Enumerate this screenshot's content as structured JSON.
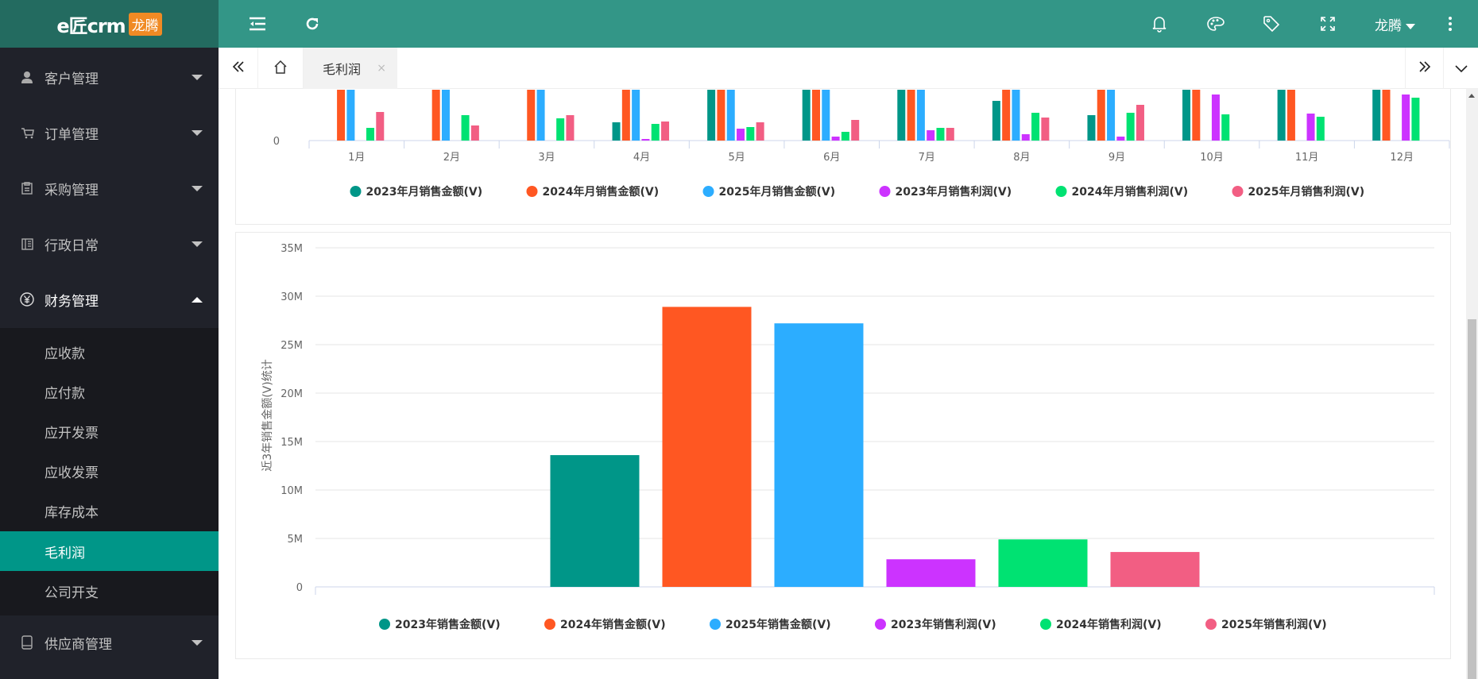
{
  "app": {
    "logo_text": "e匠crm",
    "logo_badge": "龙腾"
  },
  "header": {
    "user": "龙腾",
    "icons": [
      "menu-fold-icon",
      "refresh-icon",
      "bell-icon",
      "palette-icon",
      "tag-icon",
      "fullscreen-icon",
      "more-vertical-icon"
    ]
  },
  "sidebar": {
    "items": [
      {
        "label": "客户管理",
        "icon": "user-icon"
      },
      {
        "label": "订单管理",
        "icon": "cart-icon"
      },
      {
        "label": "采购管理",
        "icon": "clipboard-icon"
      },
      {
        "label": "行政日常",
        "icon": "book-icon"
      },
      {
        "label": "财务管理",
        "icon": "yen-icon",
        "expanded": true
      },
      {
        "label": "供应商管理",
        "icon": "tablet-icon"
      }
    ],
    "sub_items": [
      {
        "label": "应收款"
      },
      {
        "label": "应付款"
      },
      {
        "label": "应开发票"
      },
      {
        "label": "应收发票"
      },
      {
        "label": "库存成本"
      },
      {
        "label": "毛利润",
        "active": true
      },
      {
        "label": "公司开支"
      }
    ]
  },
  "tabs": {
    "items": [
      {
        "label": "毛利润",
        "close": "×"
      }
    ]
  },
  "colors": {
    "header": "#339687",
    "active": "#009688",
    "sidebar": "#20222a"
  },
  "chart_data": [
    {
      "type": "bar",
      "note_visible_part": "scrolled; only lower portion visible",
      "categories": [
        "1月",
        "2月",
        "3月",
        "4月",
        "5月",
        "6月",
        "7月",
        "8月",
        "9月",
        "10月",
        "11月",
        "12月"
      ],
      "yticks": [
        "0"
      ],
      "series": [
        {
          "name": "2023年月销售金额(V)",
          "color": "#009688",
          "values": [
            0,
            0,
            0,
            0.23,
            1,
            1,
            1,
            0.5,
            0.32,
            1,
            1,
            1
          ]
        },
        {
          "name": "2024年月销售金额(V)",
          "color": "#ff5722",
          "values": [
            1,
            1,
            1,
            1,
            1,
            1,
            1,
            1,
            1,
            1,
            1,
            1
          ]
        },
        {
          "name": "2025年月销售金额(V)",
          "color": "#2cadff",
          "values": [
            1,
            1,
            1,
            1,
            1,
            1,
            1,
            1,
            1,
            0,
            0,
            0
          ]
        },
        {
          "name": "2023年月销售利润(V)",
          "color": "#cc33ff",
          "values": [
            0,
            0,
            0,
            0.02,
            0.15,
            0.05,
            0.13,
            0.08,
            0.05,
            0.58,
            0.34,
            0.58
          ]
        },
        {
          "name": "2024年月销售利润(V)",
          "color": "#00e272",
          "values": [
            0.16,
            0.32,
            0.28,
            0.21,
            0.17,
            0.11,
            0.16,
            0.35,
            0.35,
            0.33,
            0.3,
            0.54
          ]
        },
        {
          "name": "2025年月销售利润(V)",
          "color": "#f25e83",
          "values": [
            0.36,
            0.19,
            0.32,
            0.24,
            0.23,
            0.26,
            0.16,
            0.29,
            0.45,
            0,
            0,
            0
          ]
        }
      ]
    },
    {
      "type": "bar",
      "ylabel": "近3年销售金额(V)统计",
      "ylim": [
        0,
        35
      ],
      "yticks": [
        "0",
        "5M",
        "10M",
        "15M",
        "20M",
        "25M",
        "30M",
        "35M"
      ],
      "series": [
        {
          "name": "2023年销售金额(V)",
          "color": "#009688",
          "value": 13.6
        },
        {
          "name": "2024年销售金额(V)",
          "color": "#ff5722",
          "value": 28.9
        },
        {
          "name": "2025年销售金额(V)",
          "color": "#2cadff",
          "value": 27.2
        },
        {
          "name": "2023年销售利润(V)",
          "color": "#cc33ff",
          "value": 2.85
        },
        {
          "name": "2024年销售利润(V)",
          "color": "#00e272",
          "value": 4.9
        },
        {
          "name": "2025年销售利润(V)",
          "color": "#f25e83",
          "value": 3.6
        }
      ]
    }
  ]
}
